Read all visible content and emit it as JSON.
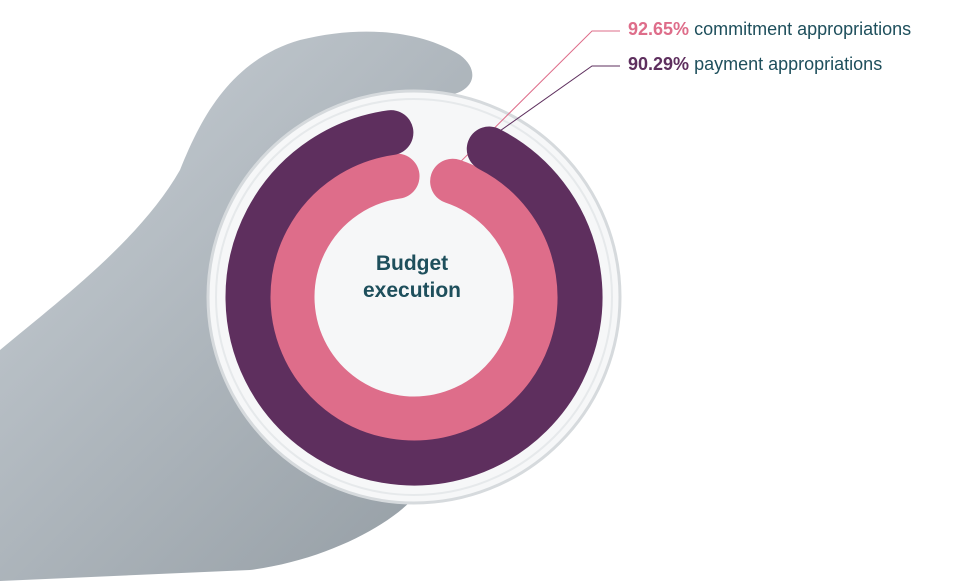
{
  "chart_data": {
    "type": "radial-bar",
    "title": "Budget execution",
    "ylim": [
      0,
      100
    ],
    "series": [
      {
        "name": "commitment appropriations",
        "color": "#de6d8a",
        "values": [
          92.65
        ],
        "value_labels": [
          "92.65%"
        ]
      },
      {
        "name": "payment appropriations",
        "color": "#5e2f5e",
        "values": [
          90.29
        ],
        "value_labels": [
          "90.29%"
        ]
      }
    ]
  }
}
